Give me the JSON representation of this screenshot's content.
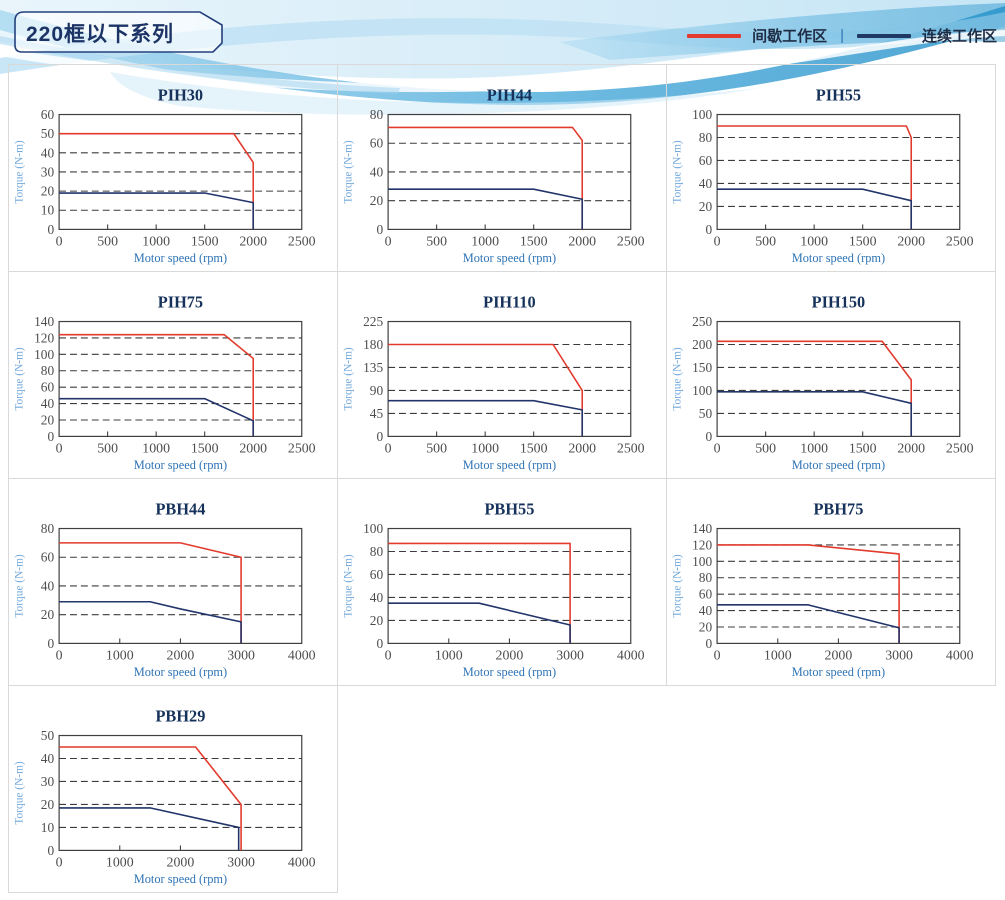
{
  "header": {
    "badge": "220框以下系列",
    "legend": {
      "separator": "|",
      "items": [
        {
          "name": "intermittent-zone",
          "label": "间歇工作区",
          "color": "#e23a2c"
        },
        {
          "name": "continuous-zone",
          "label": "连续工作区",
          "color": "#1f3864"
        }
      ]
    }
  },
  "colors": {
    "intermittent_line": "#e23a2c",
    "continuous_line": "#22356b",
    "plot_frame": "#3f3f3f",
    "grid_dash": "#3c3c3c",
    "tick_text": "#4e4e4e",
    "title_text": "#16325b",
    "xlabel_text": "#2f74b5",
    "ylabel_text": "#73a9db",
    "cell_border": "#d9d9d9",
    "wave_blue": "#3ea2d6"
  },
  "chart_data": [
    {
      "type": "line",
      "title": "PIH30",
      "xlabel": "Motor speed (rpm)",
      "ylabel": "Torque (N-m)",
      "xlim": [
        0,
        2500
      ],
      "xticks": [
        0,
        500,
        1000,
        1500,
        2000,
        2500
      ],
      "ylim": [
        0,
        60
      ],
      "yticks": [
        0,
        10,
        20,
        30,
        40,
        50,
        60
      ],
      "grid": "dashed-horizontal",
      "legend_position": "none",
      "series": [
        {
          "name": "间歇工作区",
          "role": "intermittent",
          "points": [
            [
              0,
              50
            ],
            [
              1800,
              50
            ],
            [
              2000,
              35
            ],
            [
              2000,
              0
            ]
          ]
        },
        {
          "name": "连续工作区",
          "role": "continuous",
          "points": [
            [
              0,
              19
            ],
            [
              1500,
              19
            ],
            [
              2000,
              14
            ],
            [
              2000,
              0
            ]
          ]
        }
      ]
    },
    {
      "type": "line",
      "title": "PIH44",
      "xlabel": "Motor speed (rpm)",
      "ylabel": "Torque (N-m)",
      "xlim": [
        0,
        2500
      ],
      "xticks": [
        0,
        500,
        1000,
        1500,
        2000,
        2500
      ],
      "ylim": [
        0,
        80
      ],
      "yticks": [
        0,
        20,
        40,
        60,
        80
      ],
      "grid": "dashed-horizontal",
      "legend_position": "none",
      "series": [
        {
          "name": "间歇工作区",
          "role": "intermittent",
          "points": [
            [
              0,
              71
            ],
            [
              1900,
              71
            ],
            [
              2000,
              62
            ],
            [
              2000,
              0
            ]
          ]
        },
        {
          "name": "连续工作区",
          "role": "continuous",
          "points": [
            [
              0,
              28
            ],
            [
              1500,
              28
            ],
            [
              2000,
              21
            ],
            [
              2000,
              0
            ]
          ]
        }
      ]
    },
    {
      "type": "line",
      "title": "PIH55",
      "xlabel": "Motor speed (rpm)",
      "ylabel": "Torque (N-m)",
      "xlim": [
        0,
        2500
      ],
      "xticks": [
        0,
        500,
        1000,
        1500,
        2000,
        2500
      ],
      "ylim": [
        0,
        100
      ],
      "yticks": [
        0,
        20,
        40,
        60,
        80,
        100
      ],
      "grid": "dashed-horizontal",
      "legend_position": "none",
      "series": [
        {
          "name": "间歇工作区",
          "role": "intermittent",
          "points": [
            [
              0,
              90
            ],
            [
              1950,
              90
            ],
            [
              2000,
              80
            ],
            [
              2000,
              0
            ]
          ]
        },
        {
          "name": "连续工作区",
          "role": "continuous",
          "points": [
            [
              0,
              35
            ],
            [
              1500,
              35
            ],
            [
              2000,
              25
            ],
            [
              2000,
              0
            ]
          ]
        }
      ]
    },
    {
      "type": "line",
      "title": "PIH75",
      "xlabel": "Motor speed (rpm)",
      "ylabel": "Torque (N-m)",
      "xlim": [
        0,
        2500
      ],
      "xticks": [
        0,
        500,
        1000,
        1500,
        2000,
        2500
      ],
      "ylim": [
        0,
        140
      ],
      "yticks": [
        0,
        20,
        40,
        60,
        80,
        100,
        120,
        140
      ],
      "grid": "dashed-horizontal",
      "legend_position": "none",
      "series": [
        {
          "name": "间歇工作区",
          "role": "intermittent",
          "points": [
            [
              0,
              124
            ],
            [
              1700,
              124
            ],
            [
              2000,
              95
            ],
            [
              2000,
              0
            ]
          ]
        },
        {
          "name": "连续工作区",
          "role": "continuous",
          "points": [
            [
              0,
              46
            ],
            [
              1500,
              46
            ],
            [
              2000,
              19
            ],
            [
              2000,
              0
            ]
          ]
        }
      ]
    },
    {
      "type": "line",
      "title": "PIH110",
      "xlabel": "Motor speed (rpm)",
      "ylabel": "Torque (N-m)",
      "xlim": [
        0,
        2500
      ],
      "xticks": [
        0,
        500,
        1000,
        1500,
        2000,
        2500
      ],
      "ylim": [
        0,
        225
      ],
      "yticks": [
        0,
        45,
        90,
        135,
        180,
        225
      ],
      "grid": "dashed-horizontal",
      "legend_position": "none",
      "series": [
        {
          "name": "间歇工作区",
          "role": "intermittent",
          "points": [
            [
              0,
              180
            ],
            [
              1700,
              180
            ],
            [
              2000,
              90
            ],
            [
              2000,
              0
            ]
          ]
        },
        {
          "name": "连续工作区",
          "role": "continuous",
          "points": [
            [
              0,
              70
            ],
            [
              1500,
              70
            ],
            [
              2000,
              52
            ],
            [
              2000,
              0
            ]
          ]
        }
      ]
    },
    {
      "type": "line",
      "title": "PIH150",
      "xlabel": "Motor speed (rpm)",
      "ylabel": "Torque (N-m)",
      "xlim": [
        0,
        2500
      ],
      "xticks": [
        0,
        500,
        1000,
        1500,
        2000,
        2500
      ],
      "ylim": [
        0,
        250
      ],
      "yticks": [
        0,
        50,
        100,
        150,
        200,
        250
      ],
      "grid": "dashed-horizontal",
      "legend_position": "none",
      "series": [
        {
          "name": "间歇工作区",
          "role": "intermittent",
          "points": [
            [
              0,
              207
            ],
            [
              1700,
              207
            ],
            [
              2000,
              123
            ],
            [
              2000,
              0
            ]
          ]
        },
        {
          "name": "连续工作区",
          "role": "continuous",
          "points": [
            [
              0,
              97
            ],
            [
              1500,
              97
            ],
            [
              2000,
              72
            ],
            [
              2000,
              0
            ]
          ]
        }
      ]
    },
    {
      "type": "line",
      "title": "PBH44",
      "xlabel": "Motor speed (rpm)",
      "ylabel": "Torque (N-m)",
      "xlim": [
        0,
        4000
      ],
      "xticks": [
        0,
        1000,
        2000,
        3000,
        4000
      ],
      "ylim": [
        0,
        80
      ],
      "yticks": [
        0,
        20,
        40,
        60,
        80
      ],
      "grid": "dashed-horizontal",
      "legend_position": "none",
      "series": [
        {
          "name": "间歇工作区",
          "role": "intermittent",
          "points": [
            [
              0,
              70
            ],
            [
              2000,
              70
            ],
            [
              3000,
              60
            ],
            [
              3000,
              0
            ]
          ]
        },
        {
          "name": "连续工作区",
          "role": "continuous",
          "points": [
            [
              0,
              29
            ],
            [
              1500,
              29
            ],
            [
              2000,
              24
            ],
            [
              3000,
              15
            ],
            [
              3000,
              0
            ]
          ]
        }
      ]
    },
    {
      "type": "line",
      "title": "PBH55",
      "xlabel": "Motor speed (rpm)",
      "ylabel": "Torque (N-m)",
      "xlim": [
        0,
        4000
      ],
      "xticks": [
        0,
        1000,
        2000,
        3000,
        4000
      ],
      "ylim": [
        0,
        100
      ],
      "yticks": [
        0,
        20,
        40,
        60,
        80,
        100
      ],
      "grid": "dashed-horizontal",
      "legend_position": "none",
      "series": [
        {
          "name": "间歇工作区",
          "role": "intermittent",
          "points": [
            [
              0,
              87
            ],
            [
              3000,
              87
            ],
            [
              3000,
              0
            ]
          ]
        },
        {
          "name": "连续工作区",
          "role": "continuous",
          "points": [
            [
              0,
              35
            ],
            [
              1500,
              35
            ],
            [
              3000,
              16
            ],
            [
              3000,
              0
            ]
          ]
        }
      ]
    },
    {
      "type": "line",
      "title": "PBH75",
      "xlabel": "Motor speed (rpm)",
      "ylabel": "Torque (N-m)",
      "xlim": [
        0,
        4000
      ],
      "xticks": [
        0,
        1000,
        2000,
        3000,
        4000
      ],
      "ylim": [
        0,
        140
      ],
      "yticks": [
        0,
        20,
        40,
        60,
        80,
        100,
        120,
        140
      ],
      "grid": "dashed-horizontal",
      "legend_position": "none",
      "series": [
        {
          "name": "间歇工作区",
          "role": "intermittent",
          "points": [
            [
              0,
              120
            ],
            [
              1500,
              120
            ],
            [
              3000,
              109
            ],
            [
              3000,
              0
            ]
          ]
        },
        {
          "name": "连续工作区",
          "role": "continuous",
          "points": [
            [
              0,
              47
            ],
            [
              1500,
              47
            ],
            [
              3000,
              19
            ],
            [
              3000,
              0
            ]
          ]
        }
      ]
    },
    {
      "type": "line",
      "title": "PBH29",
      "xlabel": "Motor speed (rpm)",
      "ylabel": "Torque (N-m)",
      "xlim": [
        0,
        4000
      ],
      "xticks": [
        0,
        1000,
        2000,
        3000,
        4000
      ],
      "ylim": [
        0,
        50
      ],
      "yticks": [
        0,
        10,
        20,
        30,
        40,
        50
      ],
      "grid": "dashed-horizontal",
      "legend_position": "none",
      "series": [
        {
          "name": "间歇工作区",
          "role": "intermittent",
          "points": [
            [
              0,
              45
            ],
            [
              2250,
              45
            ],
            [
              3000,
              20
            ],
            [
              3000,
              0
            ]
          ]
        },
        {
          "name": "连续工作区",
          "role": "continuous",
          "points": [
            [
              0,
              18.5
            ],
            [
              1500,
              18.5
            ],
            [
              2960,
              10
            ],
            [
              2960,
              0
            ]
          ]
        }
      ]
    }
  ]
}
